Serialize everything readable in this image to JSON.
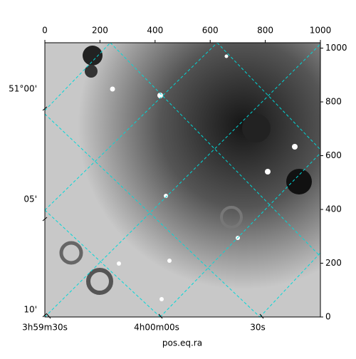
{
  "chart_data": {
    "type": "image",
    "xlabel": "pos.eq.ra",
    "xlim": [
      0,
      1000
    ],
    "xticks": [
      0,
      200,
      400,
      600,
      800,
      1000
    ],
    "ylim": [
      0,
      1020
    ],
    "yticks": [
      0,
      200,
      400,
      600,
      800,
      1000
    ],
    "ra_ticks": [
      "3h59m30s",
      "4h00m00s",
      "30s"
    ],
    "dec_ticks": [
      "51°00'",
      "05'",
      "10'"
    ],
    "grid_color": "#00d8d8"
  }
}
